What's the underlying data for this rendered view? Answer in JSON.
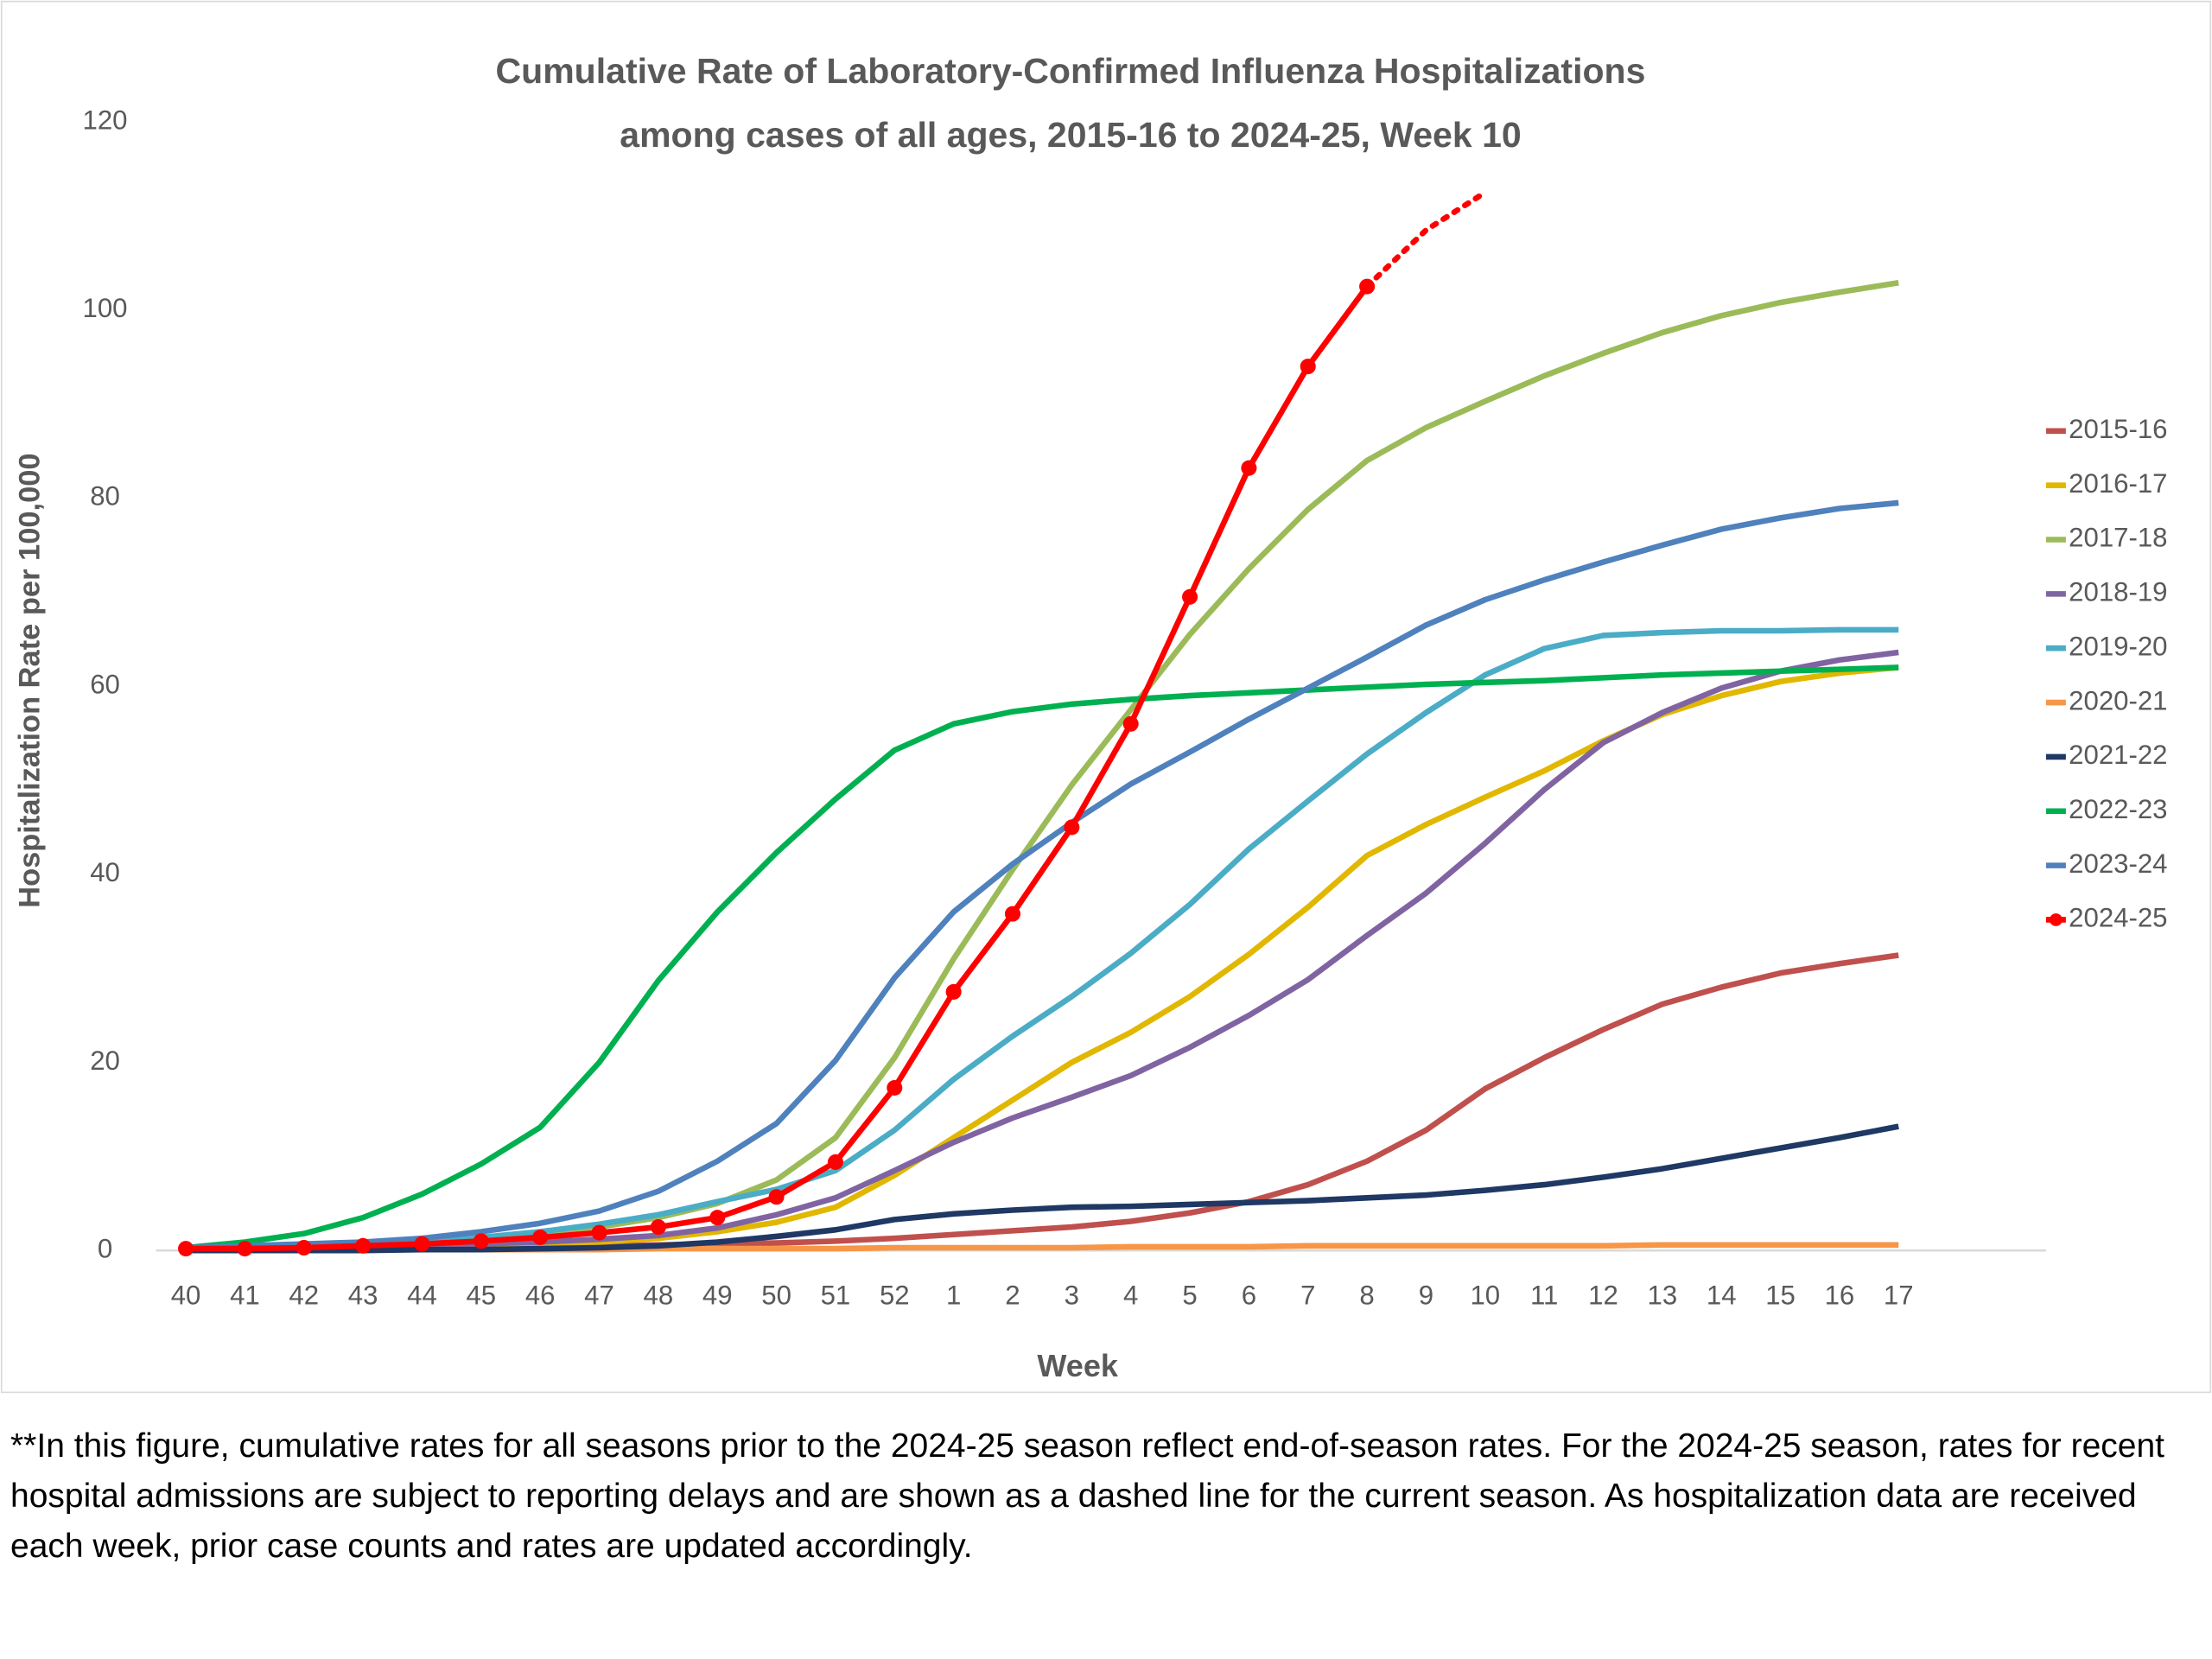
{
  "chart_data": {
    "type": "line",
    "title": "Cumulative Rate of Laboratory-Confirmed Influenza Hospitalizations",
    "subtitle": "among cases of all ages, 2015-16 to 2024-25, Week 10",
    "x_label": "Week",
    "y_label": "Hospitalization Rate per 100,000",
    "categories": [
      40,
      41,
      42,
      43,
      44,
      45,
      46,
      47,
      48,
      49,
      50,
      51,
      52,
      1,
      2,
      3,
      4,
      5,
      6,
      7,
      8,
      9,
      10,
      11,
      12,
      13,
      14,
      15,
      16,
      17
    ],
    "ylim": [
      0,
      120
    ],
    "yticks": [
      0,
      20,
      40,
      60,
      80,
      100,
      120
    ],
    "grid": false,
    "legend": "right",
    "series": [
      {
        "name": "2015-16",
        "color": "#c0504d",
        "values": [
          0.1,
          0.1,
          0.2,
          0.2,
          0.3,
          0.3,
          0.4,
          0.5,
          0.6,
          0.7,
          0.8,
          1.0,
          1.3,
          1.7,
          2.1,
          2.5,
          3.1,
          4,
          5.2,
          7,
          9.5,
          12.8,
          17.2,
          20.5,
          23.5,
          26.2,
          28,
          29.5,
          30.5,
          31.4
        ]
      },
      {
        "name": "2016-17",
        "color": "#e1b700",
        "values": [
          0.1,
          0.1,
          0.2,
          0.2,
          0.3,
          0.4,
          0.6,
          0.9,
          1.3,
          2.0,
          3.0,
          4.6,
          8,
          12,
          16,
          20,
          23.2,
          27,
          31.5,
          36.5,
          42,
          45.3,
          48.2,
          51,
          54.2,
          57,
          59,
          60.5,
          61.4,
          62
        ]
      },
      {
        "name": "2017-18",
        "color": "#9bbb59",
        "values": [
          0.2,
          0.3,
          0.5,
          0.7,
          1,
          1.3,
          1.8,
          2.5,
          3.5,
          5,
          7.5,
          12,
          20.5,
          31,
          40.5,
          49.5,
          57.5,
          65.5,
          72.5,
          78.8,
          84,
          87.5,
          90.3,
          93,
          95.4,
          97.6,
          99.4,
          100.8,
          101.9,
          102.9
        ]
      },
      {
        "name": "2018-19",
        "color": "#8064a2",
        "values": [
          0.1,
          0.2,
          0.3,
          0.4,
          0.5,
          0.7,
          0.9,
          1.2,
          1.6,
          2.4,
          3.8,
          5.6,
          8.5,
          11.5,
          14.1,
          16.3,
          18.6,
          21.6,
          25,
          28.8,
          33.5,
          38,
          43.3,
          49,
          54,
          57.2,
          59.8,
          61.6,
          62.8,
          63.6
        ]
      },
      {
        "name": "2019-20",
        "color": "#4bacc6",
        "values": [
          0.2,
          0.3,
          0.5,
          0.7,
          1,
          1.4,
          2,
          2.8,
          3.8,
          5.2,
          6.5,
          8.5,
          12.8,
          18.2,
          22.8,
          27,
          31.6,
          36.8,
          42.7,
          47.8,
          52.8,
          57.2,
          61.2,
          64,
          65.4,
          65.7,
          65.9,
          65.9,
          66,
          66
        ]
      },
      {
        "name": "2020-21",
        "color": "#f79646",
        "values": [
          0,
          0,
          0,
          0.1,
          0.1,
          0.1,
          0.1,
          0.1,
          0.2,
          0.2,
          0.2,
          0.2,
          0.3,
          0.3,
          0.3,
          0.3,
          0.4,
          0.4,
          0.4,
          0.5,
          0.5,
          0.5,
          0.5,
          0.5,
          0.5,
          0.6,
          0.6,
          0.6,
          0.6,
          0.6
        ]
      },
      {
        "name": "2021-22",
        "color": "#1f3864",
        "values": [
          0,
          0,
          0,
          0,
          0.1,
          0.1,
          0.2,
          0.3,
          0.5,
          0.9,
          1.5,
          2.2,
          3.3,
          3.9,
          4.3,
          4.6,
          4.7,
          4.9,
          5.1,
          5.3,
          5.6,
          5.9,
          6.4,
          7,
          7.8,
          8.7,
          9.8,
          10.9,
          12,
          13.2
        ]
      },
      {
        "name": "2022-23",
        "color": "#00b050",
        "values": [
          0.3,
          0.9,
          1.8,
          3.5,
          6,
          9.2,
          13.1,
          20,
          28.7,
          36,
          42.3,
          48,
          53.2,
          56,
          57.3,
          58.1,
          58.6,
          59,
          59.3,
          59.6,
          59.9,
          60.2,
          60.4,
          60.6,
          60.9,
          61.2,
          61.4,
          61.6,
          61.8,
          62
        ]
      },
      {
        "name": "2023-24",
        "color": "#4f81bd",
        "values": [
          0.3,
          0.5,
          0.7,
          0.9,
          1.3,
          2,
          2.9,
          4.2,
          6.3,
          9.5,
          13.5,
          20.2,
          29,
          36,
          41.1,
          45.5,
          49.6,
          53,
          56.5,
          59.8,
          63.1,
          66.5,
          69.2,
          71.3,
          73.2,
          75,
          76.7,
          77.9,
          78.9,
          79.5
        ]
      },
      {
        "name": "2024-25",
        "color": "#ff0000",
        "markers": true,
        "dashed_weeks": [
          9,
          10
        ],
        "values": [
          0.2,
          0.2,
          0.3,
          0.5,
          0.7,
          1.0,
          1.4,
          1.9,
          2.5,
          3.5,
          5.7,
          9.4,
          17.3,
          27.5,
          35.8,
          45,
          56,
          69.5,
          83.2,
          94,
          102.5,
          108.5,
          112.5,
          null,
          null,
          null,
          null,
          null,
          null,
          null
        ]
      }
    ]
  },
  "footnote": "**In this figure, cumulative rates for all seasons prior to the 2024-25 season reflect end-of-season rates. For the 2024-25 season, rates for recent hospital admissions are subject to reporting delays and are shown as a dashed line for the current season. As hospitalization data are received each week, prior case counts and rates are updated accordingly."
}
